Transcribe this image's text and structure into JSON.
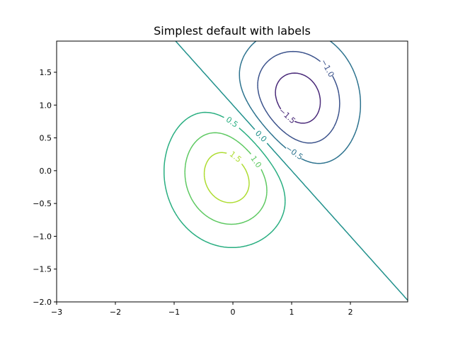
{
  "chart_data": {
    "type": "contour",
    "title": "Simplest default with labels",
    "xlabel": "",
    "ylabel": "",
    "xlim": [
      -3,
      2.975
    ],
    "ylim": [
      -2,
      1.975
    ],
    "xticks": [
      "−3",
      "−2",
      "−1",
      "0",
      "1",
      "2"
    ],
    "xtick_values": [
      -3,
      -2,
      -1,
      0,
      1,
      2
    ],
    "yticks": [
      "−2.0",
      "−1.5",
      "−1.0",
      "−0.5",
      "0.0",
      "0.5",
      "1.0",
      "1.5"
    ],
    "ytick_values": [
      -2,
      -1.5,
      -1,
      -0.5,
      0,
      0.5,
      1,
      1.5
    ],
    "function": "Z = 2*(exp(-x^2-y^2) - exp(-(x-1)^2-(y-1)^2))",
    "grid_step": 0.025,
    "colormap": "viridis",
    "levels": [
      -1.5,
      -1.0,
      -0.5,
      0.0,
      0.5,
      1.0,
      1.5
    ],
    "level_labels": [
      "−1.5",
      "−1.0",
      "−0.5",
      "0.0",
      "0.5",
      "1.0",
      "1.5"
    ],
    "level_colors": [
      "#482878",
      "#3b528b",
      "#2c728e",
      "#21918c",
      "#28ae80",
      "#5ec962",
      "#addc30"
    ],
    "grid": false
  }
}
